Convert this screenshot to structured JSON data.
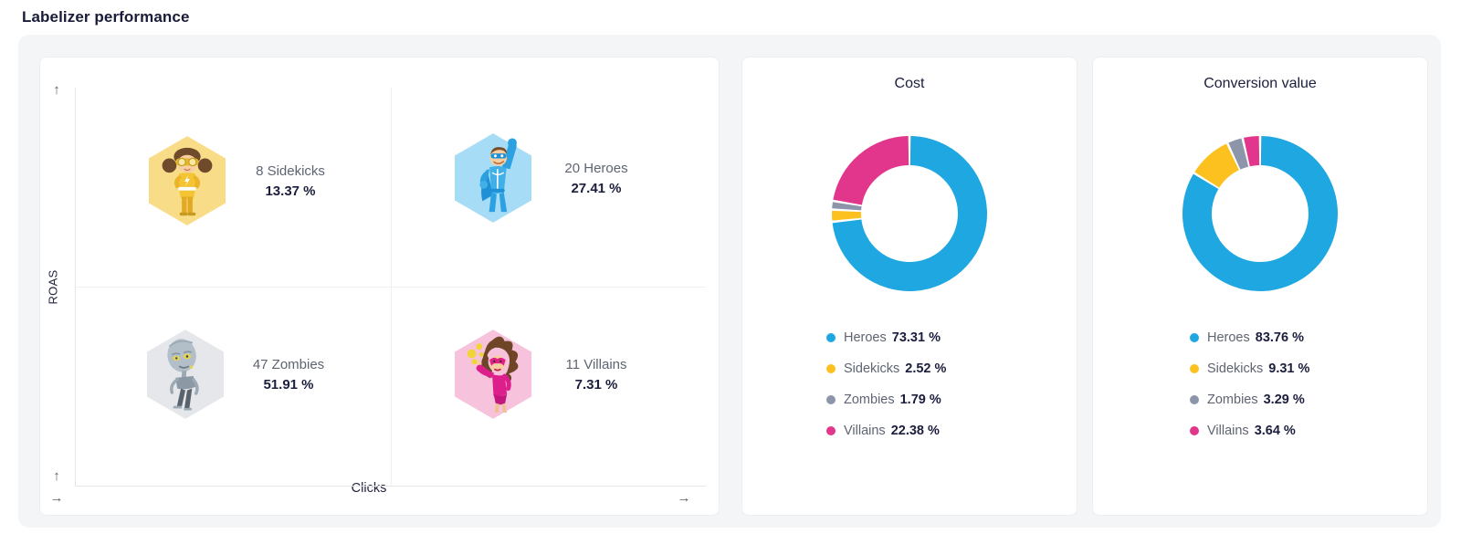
{
  "page": {
    "title": "Labelizer performance"
  },
  "icons": {
    "sidekicks": "sidekick-girl-yellow-hexagon",
    "heroes": "superhero-man-blue-hexagon",
    "zombies": "zombie-gray-hexagon",
    "villains": "villain-woman-pink-hexagon",
    "axis_up": "↑",
    "axis_right": "→"
  },
  "colors": {
    "heroes": "#1EA7E1",
    "sidekicks": "#FCC11E",
    "zombies": "#8C95A9",
    "villains": "#E2368D",
    "text_dark": "#1B1E3C",
    "text_gray": "#5E6472",
    "panel_bg": "#F4F5F7",
    "card_bg": "#FFFFFF"
  },
  "chart_data": [
    {
      "type": "scatter",
      "variant": "quadrant-matrix",
      "title": "Labelizer performance",
      "xlabel": "Clicks",
      "ylabel": "ROAS",
      "grid": "center midlines only",
      "points": [
        {
          "label": "Sidekicks",
          "count": 8,
          "display": "8 Sidekicks",
          "value": "13.37 %",
          "value_pct": 13.37,
          "position": "low clicks / high ROAS"
        },
        {
          "label": "Heroes",
          "count": 20,
          "display": "20 Heroes",
          "value": "27.41 %",
          "value_pct": 27.41,
          "position": "high clicks / high ROAS"
        },
        {
          "label": "Zombies",
          "count": 47,
          "display": "47 Zombies",
          "value": "51.91 %",
          "value_pct": 51.91,
          "position": "low clicks / low ROAS"
        },
        {
          "label": "Villains",
          "count": 11,
          "display": "11 Villains",
          "value": "7.31 %",
          "value_pct": 7.31,
          "position": "high clicks / low ROAS"
        }
      ]
    },
    {
      "type": "pie",
      "variant": "donut",
      "title": "Cost",
      "labels": [
        "Heroes",
        "Sidekicks",
        "Zombies",
        "Villains"
      ],
      "values": [
        73.31,
        2.52,
        1.79,
        22.38
      ],
      "colors": [
        "#1EA7E1",
        "#FCC11E",
        "#8C95A9",
        "#E2368D"
      ],
      "start_angle": "top, clockwise",
      "legend_position": "bottom-left",
      "legend": [
        {
          "label": "Heroes",
          "value": "73.31 %"
        },
        {
          "label": "Sidekicks",
          "value": "2.52 %"
        },
        {
          "label": "Zombies",
          "value": "1.79 %"
        },
        {
          "label": "Villains",
          "value": "22.38 %"
        }
      ]
    },
    {
      "type": "pie",
      "variant": "donut",
      "title": "Conversion value",
      "labels": [
        "Heroes",
        "Sidekicks",
        "Zombies",
        "Villains"
      ],
      "values": [
        83.76,
        9.31,
        3.29,
        3.64
      ],
      "colors": [
        "#1EA7E1",
        "#FCC11E",
        "#8C95A9",
        "#E2368D"
      ],
      "start_angle": "top, clockwise",
      "legend_position": "bottom-left",
      "legend": [
        {
          "label": "Heroes",
          "value": "83.76 %"
        },
        {
          "label": "Sidekicks",
          "value": "9.31 %"
        },
        {
          "label": "Zombies",
          "value": "3.29 %"
        },
        {
          "label": "Villains",
          "value": "3.64 %"
        }
      ]
    }
  ]
}
